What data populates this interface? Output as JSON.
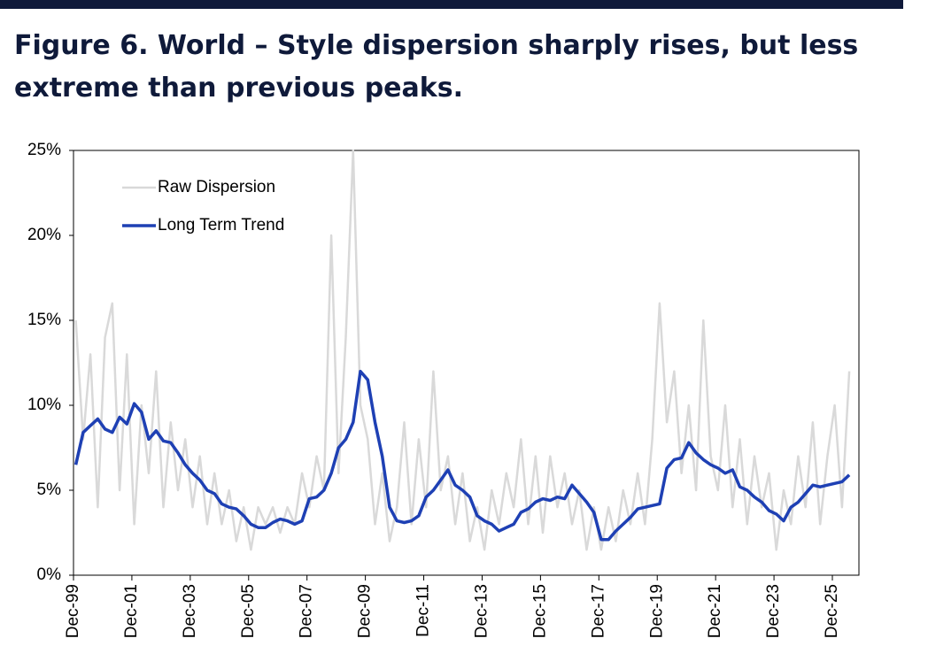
{
  "chart_data": {
    "type": "line",
    "title": "Figure 6. World – Style dispersion sharply rises, but less extreme than previous peaks.",
    "x": [
      2000,
      2000.25,
      2000.5,
      2000.75,
      2001,
      2001.25,
      2001.5,
      2001.75,
      2002,
      2002.25,
      2002.5,
      2002.75,
      2003,
      2003.25,
      2003.5,
      2003.75,
      2004,
      2004.25,
      2004.5,
      2004.75,
      2005,
      2005.25,
      2005.5,
      2005.75,
      2006,
      2006.25,
      2006.5,
      2006.75,
      2007,
      2007.25,
      2007.5,
      2007.75,
      2008,
      2008.25,
      2008.5,
      2008.75,
      2009,
      2009.25,
      2009.5,
      2009.75,
      2010,
      2010.25,
      2010.5,
      2010.75,
      2011,
      2011.25,
      2011.5,
      2011.75,
      2012,
      2012.25,
      2012.5,
      2012.75,
      2013,
      2013.25,
      2013.5,
      2013.75,
      2014,
      2014.25,
      2014.5,
      2014.75,
      2015,
      2015.25,
      2015.5,
      2015.75,
      2016,
      2016.25,
      2016.5,
      2016.75,
      2017,
      2017.25,
      2017.5,
      2017.75,
      2018,
      2018.25,
      2018.5,
      2018.75,
      2019,
      2019.25,
      2019.5,
      2019.75,
      2020,
      2020.25,
      2020.5,
      2020.75,
      2021,
      2021.25,
      2021.5,
      2021.75,
      2022,
      2022.25,
      2022.5,
      2022.75,
      2023,
      2023.25,
      2023.5,
      2023.75,
      2024,
      2024.25,
      2024.5,
      2024.75,
      2025,
      2025.25,
      2025.5,
      2025.75,
      2026,
      2026.25,
      2026.5
    ],
    "series": [
      {
        "name": "Raw Dispersion",
        "color": "#d9d9d9",
        "width": 2.5,
        "values": [
          15,
          8,
          13,
          4,
          14,
          16,
          5,
          13,
          3,
          10,
          6,
          12,
          4,
          9,
          5,
          8,
          4,
          7,
          3,
          6,
          3,
          5,
          2,
          4,
          1.5,
          4,
          3,
          4,
          2.5,
          4,
          3,
          6,
          4,
          7,
          5,
          20,
          6,
          14,
          25,
          10,
          8,
          3,
          6,
          2,
          4,
          9,
          3,
          8,
          4,
          12,
          5,
          7,
          3,
          6,
          2,
          4,
          1.5,
          5,
          3,
          6,
          4,
          8,
          3,
          7,
          2.5,
          7,
          4,
          6,
          3,
          5,
          1.5,
          4,
          1.5,
          4,
          2,
          5,
          3,
          6,
          3,
          8,
          16,
          9,
          12,
          6,
          10,
          5,
          15,
          7,
          5,
          10,
          4,
          8,
          3,
          7,
          4,
          6,
          1.5,
          5,
          3,
          7,
          4,
          9,
          3,
          7,
          10,
          4,
          12
        ]
      },
      {
        "name": "Long Term Trend",
        "color": "#1e40b4",
        "width": 3.5,
        "values": [
          6.5,
          8.4,
          8.8,
          9.2,
          8.6,
          8.4,
          9.3,
          8.9,
          10.1,
          9.6,
          8.0,
          8.5,
          7.9,
          7.8,
          7.2,
          6.5,
          6.0,
          5.6,
          5.0,
          4.8,
          4.2,
          4.0,
          3.9,
          3.5,
          3.0,
          2.8,
          2.8,
          3.1,
          3.3,
          3.2,
          3.0,
          3.2,
          4.5,
          4.6,
          5.0,
          6.0,
          7.5,
          8.0,
          9.0,
          12.0,
          11.5,
          9.0,
          7.0,
          4.0,
          3.2,
          3.1,
          3.2,
          3.5,
          4.6,
          5.0,
          5.6,
          6.2,
          5.3,
          5.0,
          4.6,
          3.5,
          3.2,
          3.0,
          2.6,
          2.8,
          3.0,
          3.7,
          3.9,
          4.3,
          4.5,
          4.4,
          4.6,
          4.5,
          5.3,
          4.8,
          4.3,
          3.7,
          2.1,
          2.1,
          2.6,
          3.0,
          3.4,
          3.9,
          4.0,
          4.1,
          4.2,
          6.3,
          6.8,
          6.9,
          7.8,
          7.2,
          6.8,
          6.5,
          6.3,
          6.0,
          6.2,
          5.2,
          5.0,
          4.6,
          4.3,
          3.8,
          3.6,
          3.2,
          4.0,
          4.3,
          4.8,
          5.3,
          5.2,
          5.3,
          5.4,
          5.5,
          5.9
        ]
      }
    ],
    "xlim": [
      1999.92,
      2026.83
    ],
    "xticks": [
      {
        "value": 1999.92,
        "label": "Dec-99"
      },
      {
        "value": 2001.92,
        "label": "Dec-01"
      },
      {
        "value": 2003.92,
        "label": "Dec-03"
      },
      {
        "value": 2005.92,
        "label": "Dec-05"
      },
      {
        "value": 2007.92,
        "label": "Dec-07"
      },
      {
        "value": 2009.92,
        "label": "Dec-09"
      },
      {
        "value": 2011.92,
        "label": "Dec-11"
      },
      {
        "value": 2013.92,
        "label": "Dec-13"
      },
      {
        "value": 2015.92,
        "label": "Dec-15"
      },
      {
        "value": 2017.92,
        "label": "Dec-17"
      },
      {
        "value": 2019.92,
        "label": "Dec-19"
      },
      {
        "value": 2021.92,
        "label": "Dec-21"
      },
      {
        "value": 2023.92,
        "label": "Dec-23"
      },
      {
        "value": 2025.92,
        "label": "Dec-25"
      }
    ],
    "ylim": [
      0,
      25
    ],
    "yticks": [
      {
        "value": 0,
        "label": "0%"
      },
      {
        "value": 5,
        "label": "5%"
      },
      {
        "value": 10,
        "label": "10%"
      },
      {
        "value": 15,
        "label": "15%"
      },
      {
        "value": 20,
        "label": "20%"
      },
      {
        "value": 25,
        "label": "25%"
      }
    ],
    "legend": "upper-left"
  }
}
